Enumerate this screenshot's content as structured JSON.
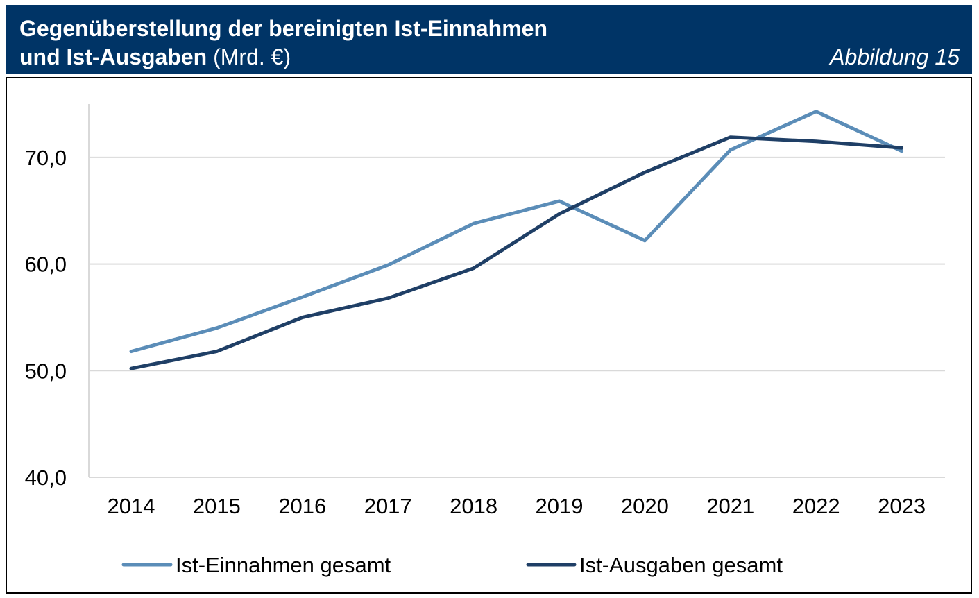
{
  "header": {
    "title_line1": "Gegenüberstellung der bereinigten Ist-Einnahmen",
    "title_line2_bold": "und Ist-Ausgaben",
    "title_line2_rest": " (Mrd. €)",
    "figure_label": "Abbildung 15"
  },
  "colors": {
    "header_bg": "#003466",
    "einnahmen": "#5b8db8",
    "ausgaben": "#1f3f66",
    "grid": "#d9d9d9"
  },
  "chart_data": {
    "type": "line",
    "title": "Gegenüberstellung der bereinigten Ist-Einnahmen und Ist-Ausgaben (Mrd. €)",
    "xlabel": "",
    "ylabel": "",
    "x": [
      "2014",
      "2015",
      "2016",
      "2017",
      "2018",
      "2019",
      "2020",
      "2021",
      "2022",
      "2023"
    ],
    "ylim": [
      40,
      75
    ],
    "yticks": [
      40,
      50,
      60,
      70
    ],
    "ytick_labels": [
      "40,0",
      "50,0",
      "60,0",
      "70,0"
    ],
    "grid": true,
    "legend_position": "bottom",
    "series": [
      {
        "name": "Ist-Einnahmen gesamt",
        "color": "#5b8db8",
        "values": [
          51.8,
          54.0,
          56.9,
          59.9,
          63.8,
          65.9,
          62.2,
          70.7,
          74.3,
          70.6
        ]
      },
      {
        "name": "Ist-Ausgaben gesamt",
        "color": "#1f3f66",
        "values": [
          50.2,
          51.8,
          55.0,
          56.8,
          59.6,
          64.7,
          68.6,
          71.9,
          71.5,
          70.9
        ]
      }
    ]
  }
}
